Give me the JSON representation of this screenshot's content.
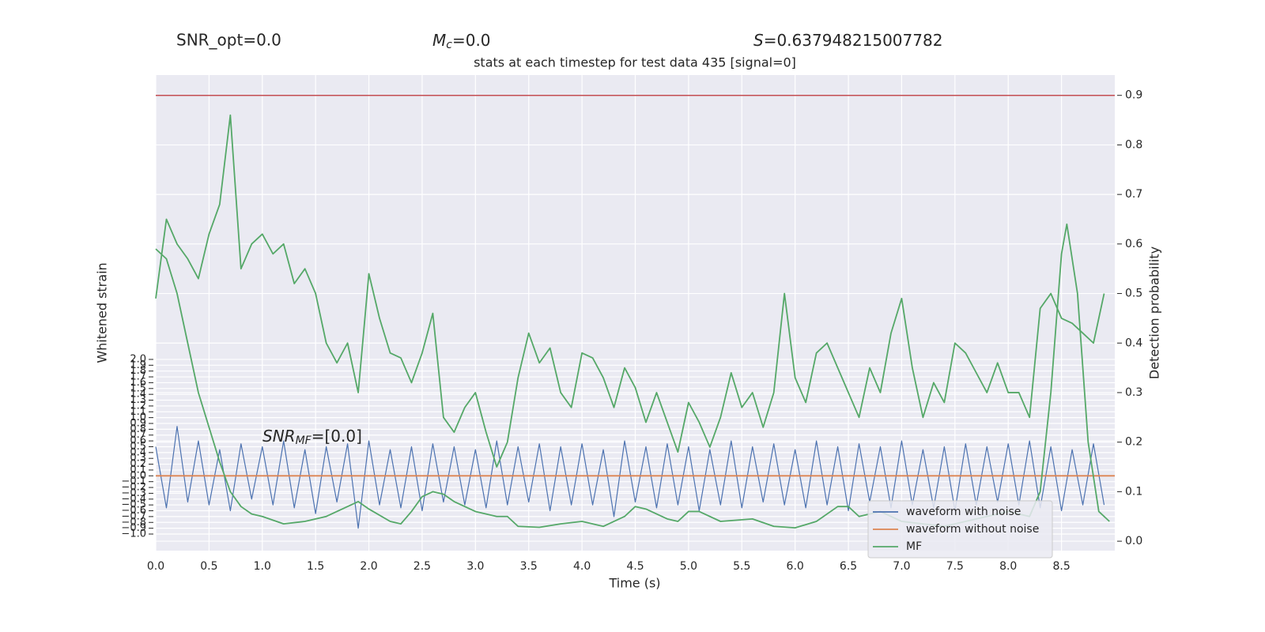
{
  "chart_data": {
    "type": "line",
    "header": {
      "snr_opt": "SNR_opt=0.0",
      "chirp_mass": {
        "symbol": "M",
        "subscript": "c",
        "text": "=0.0"
      },
      "score": {
        "symbol": "S",
        "text": "=0.637948215007782"
      }
    },
    "title": "stats at each timestep for test data 435 [signal=0]",
    "annotation": {
      "symbol": "SNR",
      "subscript": "MF",
      "text": "=[0.0]"
    },
    "xlabel": "Time (s)",
    "ylabel": "Whitened strain",
    "y2label": "Detection probability",
    "xlim": [
      0,
      9
    ],
    "xticks": [
      {
        "value": 0,
        "label": "0.0"
      },
      0.5,
      {
        "value": 1,
        "label": "1.0"
      },
      1.5,
      {
        "value": 2,
        "label": "2.0"
      },
      2.5,
      {
        "value": 3,
        "label": "3.0"
      },
      3.5,
      {
        "value": 4,
        "label": "4.0"
      },
      4.5,
      {
        "value": 5,
        "label": "5.0"
      },
      5.5,
      {
        "value": 6,
        "label": "6.0"
      },
      6.5,
      {
        "value": 7,
        "label": "7.0"
      },
      7.5,
      {
        "value": 8,
        "label": "8.0"
      },
      8.5
    ],
    "ylim": [
      -1.285,
      6.885
    ],
    "yticks": [
      {
        "value": -1,
        "label": "−1.0"
      },
      {
        "value": -0.9,
        "label": "−0.9"
      },
      {
        "value": -0.8,
        "label": "−0.8"
      },
      {
        "value": -0.7,
        "label": "−0.7"
      },
      {
        "value": -0.6,
        "label": "−0.6"
      },
      {
        "value": -0.5,
        "label": "−0.5"
      },
      {
        "value": -0.4,
        "label": "−0.4"
      },
      {
        "value": -0.3,
        "label": "−0.3"
      },
      {
        "value": -0.2,
        "label": "−0.2"
      },
      {
        "value": -0.1,
        "label": "−0.1"
      },
      {
        "value": 0,
        "label": "0.0"
      },
      0.1,
      0.2,
      0.3,
      0.4,
      0.5,
      0.6,
      0.7,
      0.8,
      0.9,
      {
        "value": 1,
        "label": "1.0"
      },
      1.1,
      1.2,
      1.3,
      1.4,
      1.5,
      1.6,
      1.7,
      1.8,
      1.9,
      {
        "value": 2,
        "label": "2.0"
      }
    ],
    "y2lim": [
      -0.019,
      0.941
    ],
    "y2ticks": [
      {
        "value": 0,
        "label": "0.0"
      },
      0.1,
      0.2,
      0.3,
      0.4,
      0.5,
      0.6,
      0.7,
      0.8,
      0.9
    ],
    "grid": true,
    "legend": "lower right",
    "series": [
      {
        "name": "waveform with noise",
        "color": "#4c72b0",
        "x": [
          0,
          0.1,
          0.2,
          0.3,
          0.4,
          0.5,
          0.6,
          0.7,
          0.8,
          0.9,
          1.0,
          1.1,
          1.2,
          1.3,
          1.4,
          1.5,
          1.6,
          1.7,
          1.8,
          1.9,
          2.0,
          2.1,
          2.2,
          2.3,
          2.4,
          2.5,
          2.6,
          2.7,
          2.8,
          2.9,
          3.0,
          3.1,
          3.2,
          3.3,
          3.4,
          3.5,
          3.6,
          3.7,
          3.8,
          3.9,
          4.0,
          4.1,
          4.2,
          4.3,
          4.4,
          4.5,
          4.6,
          4.7,
          4.8,
          4.9,
          5.0,
          5.1,
          5.2,
          5.3,
          5.4,
          5.5,
          5.6,
          5.7,
          5.8,
          5.9,
          6.0,
          6.1,
          6.2,
          6.3,
          6.4,
          6.5,
          6.6,
          6.7,
          6.8,
          6.9,
          7.0,
          7.1,
          7.2,
          7.3,
          7.4,
          7.5,
          7.6,
          7.7,
          7.8,
          7.9,
          8.0,
          8.1,
          8.2,
          8.3,
          8.4,
          8.5,
          8.6,
          8.7,
          8.8,
          8.9
        ],
        "values": [
          0.5,
          -0.55,
          0.85,
          -0.45,
          0.6,
          -0.5,
          0.45,
          -0.6,
          0.55,
          -0.4,
          0.5,
          -0.5,
          0.6,
          -0.55,
          0.45,
          -0.65,
          0.5,
          -0.45,
          0.55,
          -0.9,
          0.6,
          -0.5,
          0.45,
          -0.55,
          0.5,
          -0.6,
          0.55,
          -0.45,
          0.5,
          -0.5,
          0.45,
          -0.55,
          0.6,
          -0.5,
          0.5,
          -0.45,
          0.55,
          -0.6,
          0.5,
          -0.5,
          0.55,
          -0.5,
          0.45,
          -0.7,
          0.6,
          -0.45,
          0.5,
          -0.55,
          0.55,
          -0.5,
          0.5,
          -0.6,
          0.45,
          -0.5,
          0.6,
          -0.55,
          0.5,
          -0.45,
          0.55,
          -0.5,
          0.45,
          -0.55,
          0.6,
          -0.5,
          0.5,
          -0.6,
          0.55,
          -0.45,
          0.5,
          -0.55,
          0.6,
          -0.5,
          0.45,
          -0.55,
          0.5,
          -0.6,
          0.55,
          -0.5,
          0.5,
          -0.45,
          0.55,
          -0.5,
          0.6,
          -0.55,
          0.5,
          -0.6,
          0.45,
          -0.5,
          0.55,
          -0.5
        ]
      },
      {
        "name": "waveform without noise",
        "color": "#dd8452",
        "x": [
          0,
          9
        ],
        "values": [
          0,
          0
        ]
      },
      {
        "name": "MF",
        "color": "#55a868",
        "axis": "y2",
        "x": [
          0,
          0.1,
          0.2,
          0.3,
          0.4,
          0.5,
          0.6,
          0.7,
          0.8,
          0.9,
          1.0,
          1.2,
          1.4,
          1.6,
          1.8,
          1.9,
          2.0,
          2.2,
          2.3,
          2.4,
          2.5,
          2.6,
          2.7,
          2.8,
          3.0,
          3.2,
          3.3,
          3.4,
          3.6,
          3.8,
          4.0,
          4.2,
          4.4,
          4.5,
          4.6,
          4.8,
          4.9,
          5.0,
          5.1,
          5.3,
          5.6,
          5.8,
          6.0,
          6.2,
          6.4,
          6.5,
          6.6,
          6.8,
          7.0,
          7.2,
          7.4,
          7.8,
          8.0,
          8.2,
          8.3,
          8.4,
          8.5,
          8.55,
          8.65,
          8.75,
          8.85,
          8.95
        ],
        "values": [
          0.59,
          0.57,
          0.5,
          0.4,
          0.3,
          0.23,
          0.16,
          0.1,
          0.07,
          0.055,
          0.05,
          0.035,
          0.04,
          0.05,
          0.07,
          0.08,
          0.065,
          0.04,
          0.035,
          0.06,
          0.09,
          0.1,
          0.095,
          0.08,
          0.06,
          0.05,
          0.05,
          0.03,
          0.028,
          0.035,
          0.04,
          0.03,
          0.05,
          0.07,
          0.065,
          0.045,
          0.04,
          0.06,
          0.06,
          0.04,
          0.045,
          0.03,
          0.027,
          0.04,
          0.07,
          0.07,
          0.05,
          0.06,
          0.04,
          0.035,
          0.03,
          0.05,
          0.06,
          0.05,
          0.1,
          0.3,
          0.58,
          0.64,
          0.5,
          0.2,
          0.06,
          0.04
        ]
      }
    ],
    "detection_probability": {
      "color": "#55a868",
      "axis": "y2",
      "x": [
        0,
        0.1,
        0.2,
        0.3,
        0.4,
        0.5,
        0.6,
        0.7,
        0.8,
        0.9,
        1.0,
        1.1,
        1.2,
        1.3,
        1.4,
        1.5,
        1.6,
        1.7,
        1.8,
        1.9,
        2.0,
        2.1,
        2.2,
        2.3,
        2.4,
        2.5,
        2.6,
        2.7,
        2.8,
        2.9,
        3.0,
        3.1,
        3.2,
        3.3,
        3.4,
        3.5,
        3.6,
        3.7,
        3.8,
        3.9,
        4.0,
        4.1,
        4.2,
        4.3,
        4.4,
        4.5,
        4.6,
        4.7,
        4.8,
        4.9,
        5.0,
        5.1,
        5.2,
        5.3,
        5.4,
        5.5,
        5.6,
        5.7,
        5.8,
        5.9,
        6.0,
        6.1,
        6.2,
        6.3,
        6.4,
        6.5,
        6.6,
        6.7,
        6.8,
        6.9,
        7.0,
        7.1,
        7.2,
        7.3,
        7.4,
        7.5,
        7.6,
        7.7,
        7.8,
        7.9,
        8.0,
        8.1,
        8.2,
        8.3,
        8.4,
        8.5,
        8.6,
        8.7,
        8.8,
        8.9
      ],
      "values": [
        0.49,
        0.65,
        0.6,
        0.57,
        0.53,
        0.62,
        0.68,
        0.86,
        0.55,
        0.6,
        0.62,
        0.58,
        0.6,
        0.52,
        0.55,
        0.5,
        0.4,
        0.36,
        0.4,
        0.3,
        0.54,
        0.45,
        0.38,
        0.37,
        0.32,
        0.38,
        0.46,
        0.25,
        0.22,
        0.27,
        0.3,
        0.22,
        0.15,
        0.2,
        0.33,
        0.42,
        0.36,
        0.39,
        0.3,
        0.27,
        0.38,
        0.37,
        0.33,
        0.27,
        0.35,
        0.31,
        0.24,
        0.3,
        0.24,
        0.18,
        0.28,
        0.24,
        0.19,
        0.25,
        0.34,
        0.27,
        0.3,
        0.23,
        0.3,
        0.5,
        0.33,
        0.28,
        0.38,
        0.4,
        0.35,
        0.3,
        0.25,
        0.35,
        0.3,
        0.42,
        0.49,
        0.35,
        0.25,
        0.32,
        0.28,
        0.4,
        0.38,
        0.34,
        0.3,
        0.36,
        0.3,
        0.3,
        0.25,
        0.47,
        0.5,
        0.45,
        0.44,
        0.42,
        0.4,
        0.5
      ]
    },
    "threshold": {
      "value": 0.9,
      "color": "#c44e52",
      "axis": "y2"
    }
  }
}
